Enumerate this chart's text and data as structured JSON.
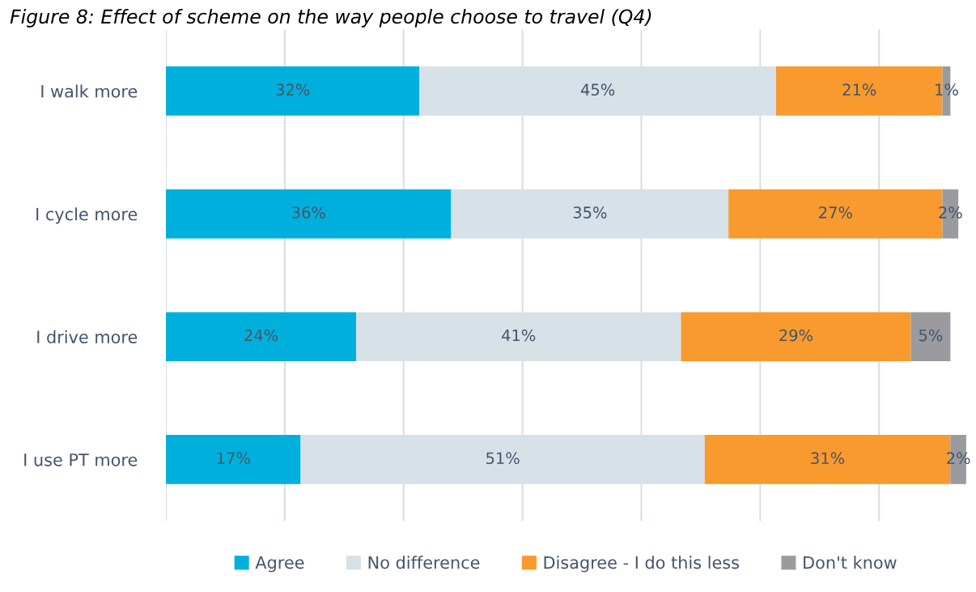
{
  "chart_data": {
    "type": "bar",
    "orientation": "horizontal",
    "stacked": true,
    "title": "Figure 8: Effect of scheme on the way people choose to travel (Q4)",
    "categories": [
      "I walk more",
      "I cycle more",
      "I drive more",
      "I use PT more"
    ],
    "series": [
      {
        "name": "Agree",
        "color": "#00b0dc",
        "values": [
          32,
          36,
          24,
          17
        ],
        "value_labels": [
          "32%",
          "36%",
          "24%",
          "17%"
        ]
      },
      {
        "name": "No difference",
        "color": "#d6e1e8",
        "values": [
          45,
          35,
          41,
          51
        ],
        "value_labels": [
          "45%",
          "35%",
          "41%",
          "51%"
        ]
      },
      {
        "name": "Disagree - I do this less",
        "color": "#f89a2e",
        "values": [
          21,
          27,
          29,
          31
        ],
        "value_labels": [
          "21%",
          "27%",
          "29%",
          "31%"
        ]
      },
      {
        "name": "Don't know",
        "color": "#9b9a9e",
        "values": [
          1,
          2,
          5,
          2
        ],
        "value_labels": [
          "1%",
          "2%",
          "5%",
          "2%"
        ]
      }
    ],
    "grid": "x",
    "legend": "bottom",
    "tick_labels": "y"
  }
}
